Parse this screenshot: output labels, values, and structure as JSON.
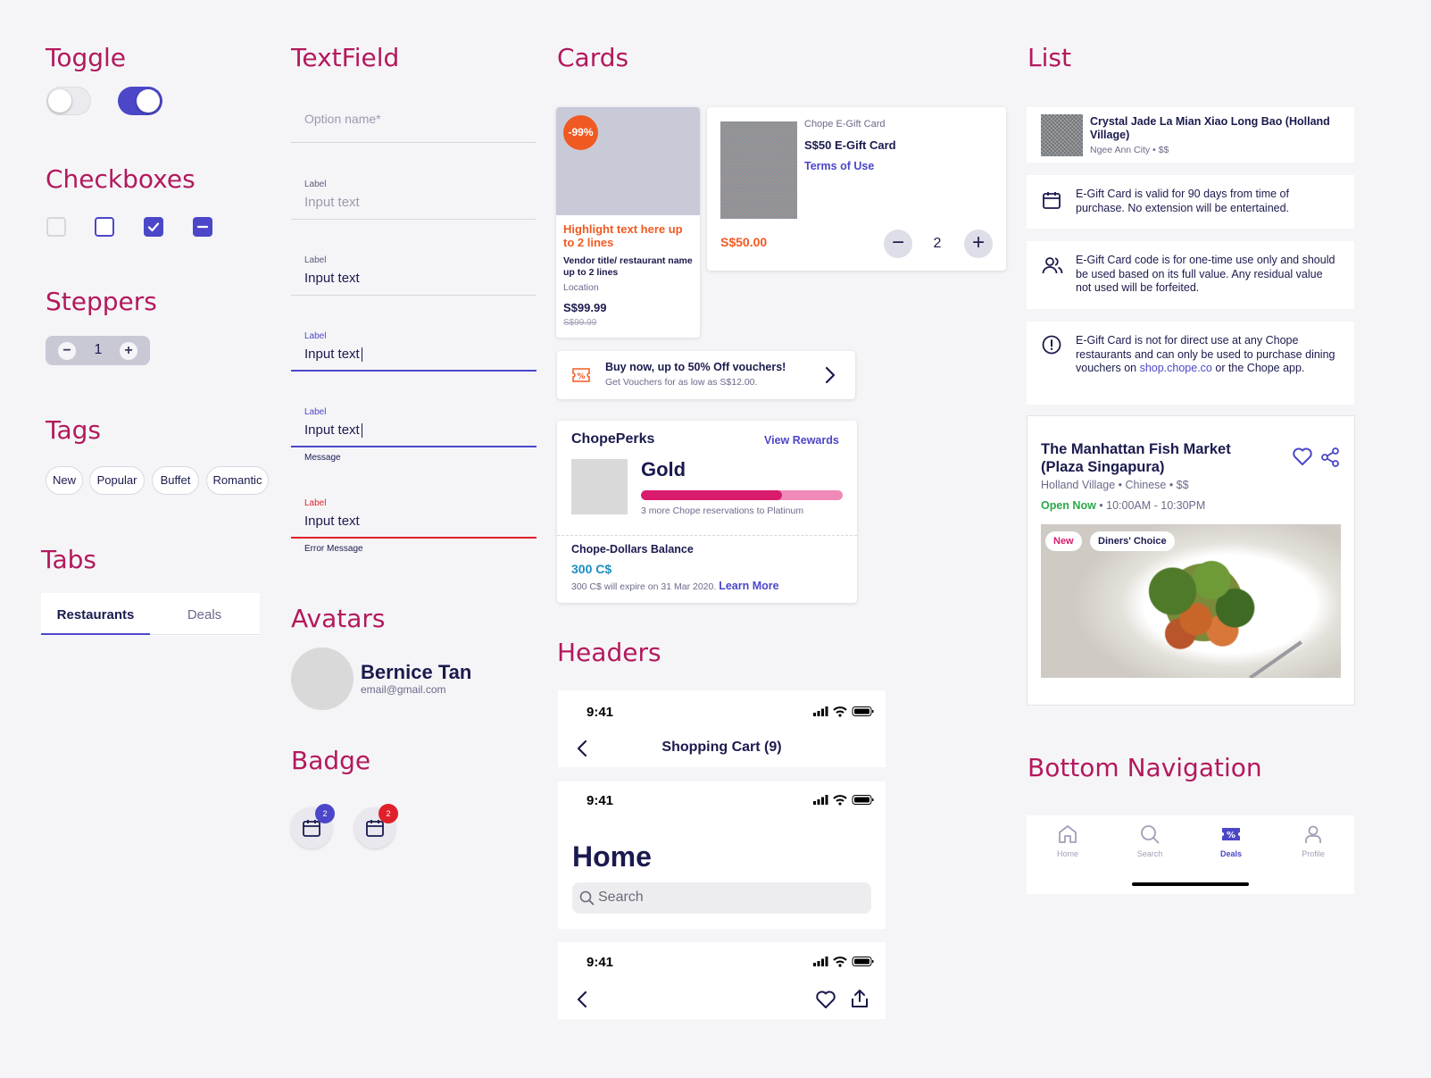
{
  "sections": {
    "toggle": "Toggle",
    "checkboxes": "Checkboxes",
    "steppers": "Steppers",
    "tags": "Tags",
    "tabs": "Tabs",
    "textfield": "TextField",
    "avatars": "Avatars",
    "badge": "Badge",
    "cards": "Cards",
    "headers": "Headers",
    "list": "List",
    "bottom_navigation": "Bottom Navigation"
  },
  "toggle": {
    "off_state": false,
    "on_state": true
  },
  "stepper": {
    "value": "1",
    "minus": "−",
    "plus": "+"
  },
  "tags": [
    "New",
    "Popular",
    "Buffet",
    "Romantic"
  ],
  "tabs": {
    "items": [
      "Restaurants",
      "Deals"
    ],
    "active": "Restaurants"
  },
  "textfields": {
    "placeholder_only": "Option name*",
    "f1": {
      "label": "Label",
      "value": "Input text"
    },
    "f2": {
      "label": "Label",
      "value": "Input text"
    },
    "f3": {
      "label": "Label",
      "value": "Input text"
    },
    "f4": {
      "label": "Label",
      "value": "Input text",
      "message": "Message"
    },
    "f5": {
      "label": "Label",
      "value": "Input text",
      "message": "Error Message"
    }
  },
  "avatar": {
    "name": "Bernice Tan",
    "email": "email@gmail.com"
  },
  "badges": [
    {
      "count": "2",
      "color": "#4b47c8"
    },
    {
      "count": "2",
      "color": "#e0202a"
    }
  ],
  "deal_card": {
    "discount": "-99%",
    "highlight": "Highlight text here up to 2 lines",
    "vendor": "Vendor title/ restaurant name up to 2 lines",
    "location": "Location",
    "price": "S$99.99",
    "old_price": "S$99.99"
  },
  "gift_card": {
    "eyebrow": "Chope E-Gift Card",
    "title": "S$50 E-Gift Card",
    "terms": "Terms of Use",
    "price": "S$50.00",
    "quantity": "2"
  },
  "voucher_banner": {
    "title": "Buy now, up to 50% Off vouchers!",
    "subtitle": "Get Vouchers for as low as S$12.00."
  },
  "perks": {
    "title": "ChopePerks",
    "link": "View Rewards",
    "tier": "Gold",
    "progress": 0.7,
    "progress_note": "3 more Chope reservations to Platinum",
    "balance_label": "Chope-Dollars Balance",
    "balance": "300 C$",
    "expiry": "300 C$ will expire on 31 Mar 2020.",
    "learn_more": "Learn More"
  },
  "headers": {
    "time": "9:41",
    "cart_title": "Shopping Cart (9)",
    "home_title": "Home",
    "search_placeholder": "Search"
  },
  "list": {
    "restaurant": {
      "name": "Crystal Jade La Mian Xiao Long Bao (Holland Village)",
      "meta": "Ngee Ann City • $$"
    },
    "notes": [
      "E-Gift Card is valid for 90 days from time of purchase. No extension will be entertained.",
      "E-Gift Card code is for one-time use only and should be used based on its full value. Any residual value not used will be forfeited."
    ],
    "note3_pre": "E-Gift Card is not for direct use at any Chope restaurants and can only be used to purchase dining vouchers on ",
    "note3_link": "shop.chope.co",
    "note3_post": " or the Chope app."
  },
  "feature_card": {
    "title": "The Manhattan Fish Market (Plaza Singapura)",
    "meta": "Holland Village • Chinese • $$",
    "open": "Open Now",
    "hours": " • 10:00AM - 10:30PM",
    "tag_new": "New",
    "tag_choice": "Diners' Choice"
  },
  "bottom_nav": {
    "items": [
      "Home",
      "Search",
      "Deals",
      "Profile"
    ],
    "active": "Deals"
  },
  "colors": {
    "accent": "#4b47c8",
    "section_title": "#b3195c",
    "highlight_orange": "#f05a22",
    "error_red": "#e0202a",
    "open_green": "#2aa84a",
    "perks_bar": "#d81b6c"
  }
}
